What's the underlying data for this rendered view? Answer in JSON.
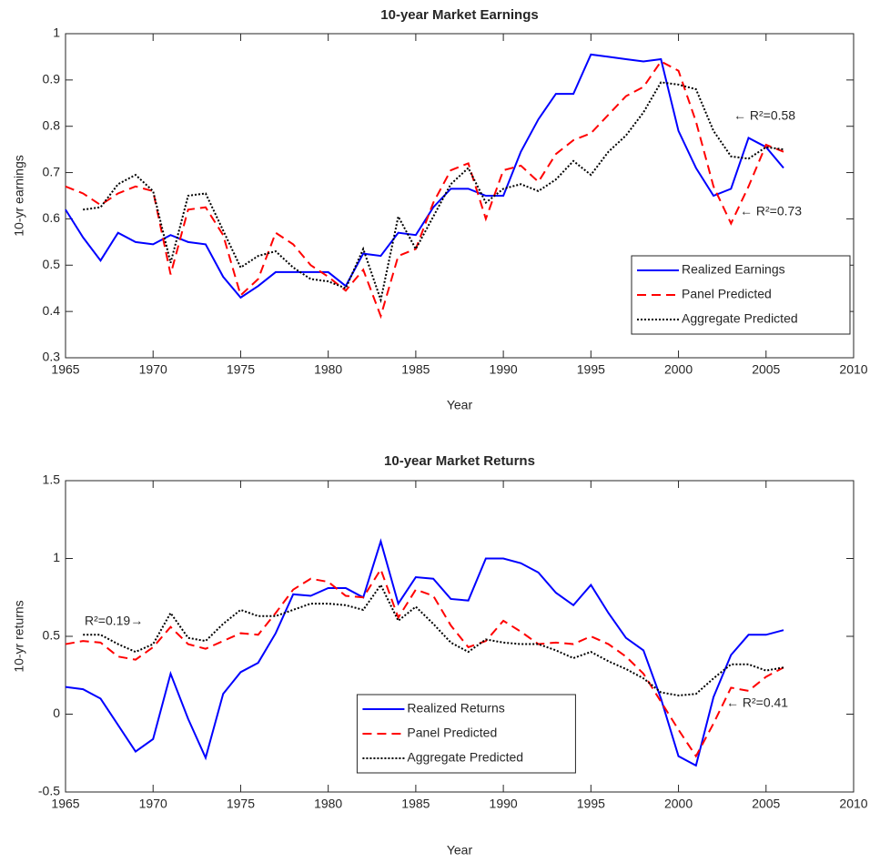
{
  "chart_data": [
    {
      "type": "line",
      "title": "10-year Market Earnings",
      "x_label": "Year",
      "y_label": "10-yr earnings",
      "x": [
        1965,
        1966,
        1967,
        1968,
        1969,
        1970,
        1971,
        1972,
        1973,
        1974,
        1975,
        1976,
        1977,
        1978,
        1979,
        1980,
        1981,
        1982,
        1983,
        1984,
        1985,
        1986,
        1987,
        1988,
        1989,
        1990,
        1991,
        1992,
        1993,
        1994,
        1995,
        1996,
        1997,
        1998,
        1999,
        2000,
        2001,
        2002,
        2003,
        2004,
        2005,
        2006
      ],
      "series": [
        {
          "name": "Realized Earnings",
          "color": "#0000ff",
          "style": "solid",
          "values": [
            0.62,
            0.56,
            0.51,
            0.57,
            0.55,
            0.545,
            0.565,
            0.55,
            0.545,
            0.475,
            0.43,
            0.455,
            0.485,
            0.485,
            0.485,
            0.485,
            0.455,
            0.525,
            0.52,
            0.57,
            0.565,
            0.625,
            0.665,
            0.665,
            0.65,
            0.65,
            0.745,
            0.815,
            0.87,
            0.87,
            0.955,
            0.95,
            0.945,
            0.94,
            0.945,
            0.79,
            0.71,
            0.65,
            0.665,
            0.775,
            0.755,
            0.71
          ]
        },
        {
          "name": "Panel Predicted",
          "color": "#ff0000",
          "style": "dashed",
          "values": [
            0.67,
            0.655,
            0.63,
            0.655,
            0.67,
            0.66,
            0.48,
            0.62,
            0.625,
            0.565,
            0.435,
            0.47,
            0.57,
            0.545,
            0.5,
            0.475,
            0.445,
            0.49,
            0.39,
            0.52,
            0.535,
            0.635,
            0.705,
            0.72,
            0.6,
            0.705,
            0.715,
            0.68,
            0.74,
            0.77,
            0.785,
            0.825,
            0.865,
            0.885,
            0.94,
            0.92,
            0.81,
            0.67,
            0.59,
            0.67,
            0.76,
            0.745
          ]
        },
        {
          "name": "Aggregate Predicted",
          "color": "#000000",
          "style": "dotted",
          "values": [
            null,
            0.62,
            0.625,
            0.675,
            0.695,
            0.66,
            0.505,
            0.65,
            0.655,
            0.575,
            0.495,
            0.52,
            0.53,
            0.495,
            0.47,
            0.465,
            0.45,
            0.535,
            0.425,
            0.605,
            0.535,
            0.605,
            0.675,
            0.71,
            0.635,
            0.665,
            0.675,
            0.66,
            0.685,
            0.725,
            0.695,
            0.745,
            0.78,
            0.83,
            0.895,
            0.89,
            0.88,
            0.79,
            0.735,
            0.73,
            0.755,
            0.75
          ]
        }
      ],
      "xlim": [
        1965,
        2010
      ],
      "xticks": [
        1965,
        1970,
        1975,
        1980,
        1985,
        1990,
        1995,
        2000,
        2005,
        2010
      ],
      "ylim": [
        0.3,
        1
      ],
      "yticks": [
        0.3,
        0.4,
        0.5,
        0.6,
        0.7,
        0.8,
        0.9,
        1
      ],
      "legend": "lower right",
      "grid": false,
      "annotations": [
        "← R²=0.58",
        "← R²=0.73"
      ]
    },
    {
      "type": "line",
      "title": "10-year Market Returns",
      "x_label": "Year",
      "y_label": "10-yr returns",
      "x": [
        1965,
        1966,
        1967,
        1968,
        1969,
        1970,
        1971,
        1972,
        1973,
        1974,
        1975,
        1976,
        1977,
        1978,
        1979,
        1980,
        1981,
        1982,
        1983,
        1984,
        1985,
        1986,
        1987,
        1988,
        1989,
        1990,
        1991,
        1992,
        1993,
        1994,
        1995,
        1996,
        1997,
        1998,
        1999,
        2000,
        2001,
        2002,
        2003,
        2004,
        2005,
        2006
      ],
      "series": [
        {
          "name": "Realized Returns",
          "color": "#0000ff",
          "style": "solid",
          "values": [
            0.175,
            0.16,
            0.1,
            -0.07,
            -0.24,
            -0.16,
            0.26,
            -0.03,
            -0.28,
            0.13,
            0.27,
            0.33,
            0.52,
            0.77,
            0.76,
            0.81,
            0.81,
            0.75,
            1.11,
            0.71,
            0.88,
            0.87,
            0.74,
            0.73,
            1.0,
            1.0,
            0.97,
            0.91,
            0.78,
            0.7,
            0.83,
            0.65,
            0.49,
            0.41,
            0.1,
            -0.27,
            -0.33,
            0.11,
            0.38,
            0.51,
            0.51,
            0.54
          ]
        },
        {
          "name": "Panel Predicted",
          "color": "#ff0000",
          "style": "dashed",
          "values": [
            0.45,
            0.47,
            0.46,
            0.37,
            0.35,
            0.43,
            0.56,
            0.45,
            0.42,
            0.47,
            0.52,
            0.51,
            0.65,
            0.8,
            0.87,
            0.85,
            0.76,
            0.75,
            0.93,
            0.62,
            0.8,
            0.76,
            0.57,
            0.43,
            0.47,
            0.6,
            0.53,
            0.45,
            0.46,
            0.45,
            0.5,
            0.45,
            0.37,
            0.26,
            0.08,
            -0.1,
            -0.27,
            -0.06,
            0.17,
            0.15,
            0.24,
            0.3
          ]
        },
        {
          "name": "Aggregate Predicted",
          "color": "#000000",
          "style": "dotted",
          "values": [
            null,
            0.51,
            0.51,
            0.45,
            0.4,
            0.45,
            0.65,
            0.49,
            0.47,
            0.58,
            0.67,
            0.63,
            0.63,
            0.67,
            0.71,
            0.71,
            0.7,
            0.67,
            0.83,
            0.6,
            0.69,
            0.58,
            0.46,
            0.4,
            0.48,
            0.46,
            0.45,
            0.45,
            0.41,
            0.36,
            0.4,
            0.34,
            0.29,
            0.23,
            0.14,
            0.12,
            0.13,
            0.23,
            0.32,
            0.32,
            0.28,
            0.3
          ]
        }
      ],
      "xlim": [
        1965,
        2010
      ],
      "xticks": [
        1965,
        1970,
        1975,
        1980,
        1985,
        1990,
        1995,
        2000,
        2005,
        2010
      ],
      "ylim": [
        -0.5,
        1.5
      ],
      "yticks": [
        -0.5,
        0,
        0.5,
        1,
        1.5
      ],
      "legend": "lower center",
      "grid": false,
      "annotations": [
        "R²=0.19→",
        "← R²=0.41"
      ]
    }
  ]
}
